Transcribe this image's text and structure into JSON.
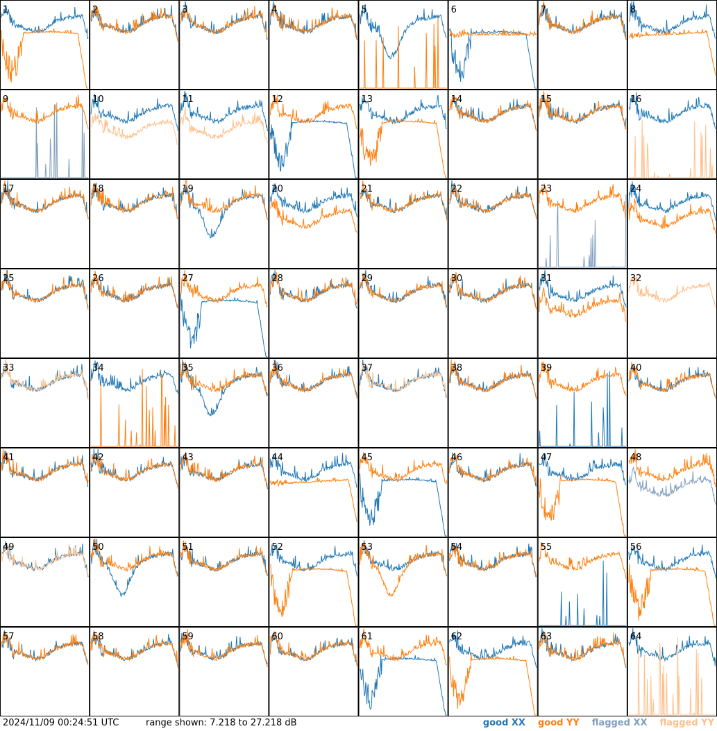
{
  "chart_data": {
    "type": "line",
    "title": "",
    "layout": "8x8 grid of small-multiple spectra, one per antenna",
    "panel_labels": [
      "1",
      "2",
      "3",
      "4",
      "5",
      "6",
      "7",
      "8",
      "9",
      "10",
      "11",
      "12",
      "13",
      "14",
      "15",
      "16",
      "17",
      "18",
      "19",
      "20",
      "21",
      "22",
      "23",
      "24",
      "25",
      "26",
      "27",
      "28",
      "29",
      "30",
      "31",
      "32",
      "33",
      "34",
      "35",
      "36",
      "37",
      "38",
      "39",
      "40",
      "41",
      "42",
      "43",
      "44",
      "45",
      "46",
      "47",
      "48",
      "49",
      "50",
      "51",
      "52",
      "53",
      "54",
      "55",
      "56",
      "57",
      "58",
      "59",
      "60",
      "61",
      "62",
      "63",
      "64"
    ],
    "y_range_db": [
      7.218,
      27.218
    ],
    "ylabel": "",
    "xlabel": "",
    "series_styles": [
      {
        "name": "good XX",
        "color": "#1f77b4"
      },
      {
        "name": "good YY",
        "color": "#ff7f0e"
      },
      {
        "name": "flagged XX",
        "color": "#7f9fbf"
      },
      {
        "name": "flagged YY",
        "color": "#ffbf8a"
      }
    ],
    "panels": [
      {
        "antenna": 1,
        "xx": "normal",
        "yy": "drop",
        "yy_flag": false,
        "xx_flag": false
      },
      {
        "antenna": 2,
        "xx": "normal",
        "yy": "normal"
      },
      {
        "antenna": 3,
        "xx": "normal",
        "yy": "normal"
      },
      {
        "antenna": 4,
        "xx": "normal",
        "yy": "normal"
      },
      {
        "antenna": 5,
        "xx": "dip",
        "yy": "dead"
      },
      {
        "antenna": 6,
        "xx": "drop",
        "yy": "flat"
      },
      {
        "antenna": 7,
        "xx": "normal",
        "yy": "normal"
      },
      {
        "antenna": 8,
        "xx": "normal",
        "yy": "tilt"
      },
      {
        "antenna": 9,
        "xx": "dead",
        "yy": "normal",
        "xx_flag": true
      },
      {
        "antenna": 10,
        "xx": "normal",
        "yy": "low",
        "yy_flag": true
      },
      {
        "antenna": 11,
        "xx": "normal",
        "yy": "low",
        "yy_flag": true
      },
      {
        "antenna": 12,
        "xx": "drop",
        "yy": "normal"
      },
      {
        "antenna": 13,
        "xx": "normal",
        "yy": "drop"
      },
      {
        "antenna": 14,
        "xx": "normal",
        "yy": "normal"
      },
      {
        "antenna": 15,
        "xx": "normal",
        "yy": "normal"
      },
      {
        "antenna": 16,
        "xx": "normal",
        "yy": "dead",
        "yy_flag": true
      },
      {
        "antenna": 17,
        "xx": "normal",
        "yy": "normal"
      },
      {
        "antenna": 18,
        "xx": "normal",
        "yy": "normal"
      },
      {
        "antenna": 19,
        "xx": "dip",
        "yy": "normal"
      },
      {
        "antenna": 20,
        "xx": "normal",
        "yy": "low"
      },
      {
        "antenna": 21,
        "xx": "normal",
        "yy": "normal"
      },
      {
        "antenna": 22,
        "xx": "normal",
        "yy": "normal"
      },
      {
        "antenna": 23,
        "xx": "dead",
        "yy": "normal",
        "xx_flag": true
      },
      {
        "antenna": 24,
        "xx": "normal",
        "yy": "low"
      },
      {
        "antenna": 25,
        "xx": "normal",
        "yy": "normal"
      },
      {
        "antenna": 26,
        "xx": "normal",
        "yy": "normal"
      },
      {
        "antenna": 27,
        "xx": "drop",
        "yy": "normal"
      },
      {
        "antenna": 28,
        "xx": "normal",
        "yy": "normal"
      },
      {
        "antenna": 29,
        "xx": "normal",
        "yy": "normal"
      },
      {
        "antenna": 30,
        "xx": "normal",
        "yy": "normal"
      },
      {
        "antenna": 31,
        "xx": "normal",
        "yy": "low"
      },
      {
        "antenna": 32,
        "xx": "none",
        "yy": "normal",
        "yy_flag": true
      },
      {
        "antenna": 33,
        "xx": "normal",
        "yy": "normal",
        "yy_flag": true
      },
      {
        "antenna": 34,
        "xx": "normal",
        "yy": "dead"
      },
      {
        "antenna": 35,
        "xx": "dip",
        "yy": "normal"
      },
      {
        "antenna": 36,
        "xx": "normal",
        "yy": "normal"
      },
      {
        "antenna": 37,
        "xx": "normal",
        "yy": "normal",
        "yy_flag": true
      },
      {
        "antenna": 38,
        "xx": "normal",
        "yy": "normal"
      },
      {
        "antenna": 39,
        "xx": "dead",
        "yy": "normal"
      },
      {
        "antenna": 40,
        "xx": "normal",
        "yy": "normal"
      },
      {
        "antenna": 41,
        "xx": "normal",
        "yy": "normal"
      },
      {
        "antenna": 42,
        "xx": "normal",
        "yy": "normal"
      },
      {
        "antenna": 43,
        "xx": "normal",
        "yy": "normal"
      },
      {
        "antenna": 44,
        "xx": "normal",
        "yy": "tilt"
      },
      {
        "antenna": 45,
        "xx": "drop",
        "yy": "normal"
      },
      {
        "antenna": 46,
        "xx": "normal",
        "yy": "normal"
      },
      {
        "antenna": 47,
        "xx": "normal",
        "yy": "drop"
      },
      {
        "antenna": 48,
        "xx": "low",
        "yy": "normal",
        "xx_flag": true
      },
      {
        "antenna": 49,
        "xx": "normal",
        "yy": "normal",
        "yy_flag": true
      },
      {
        "antenna": 50,
        "xx": "dip",
        "yy": "normal"
      },
      {
        "antenna": 51,
        "xx": "normal",
        "yy": "normal"
      },
      {
        "antenna": 52,
        "xx": "normal",
        "yy": "drop"
      },
      {
        "antenna": 53,
        "xx": "normal",
        "yy": "dip"
      },
      {
        "antenna": 54,
        "xx": "normal",
        "yy": "normal"
      },
      {
        "antenna": 55,
        "xx": "dead",
        "yy": "normal"
      },
      {
        "antenna": 56,
        "xx": "normal",
        "yy": "drop"
      },
      {
        "antenna": 57,
        "xx": "normal",
        "yy": "normal"
      },
      {
        "antenna": 58,
        "xx": "normal",
        "yy": "normal"
      },
      {
        "antenna": 59,
        "xx": "normal",
        "yy": "normal"
      },
      {
        "antenna": 60,
        "xx": "normal",
        "yy": "normal"
      },
      {
        "antenna": 61,
        "xx": "drop",
        "yy": "normal"
      },
      {
        "antenna": 62,
        "xx": "normal",
        "yy": "drop"
      },
      {
        "antenna": 63,
        "xx": "normal",
        "yy": "normal"
      },
      {
        "antenna": 64,
        "xx": "normal",
        "yy": "dead",
        "yy_flag": true
      }
    ]
  },
  "footer": {
    "timestamp": "2024/11/09 00:24:51 UTC",
    "range_text": "range shown: 7.218 to 27.218 dB"
  },
  "legend": [
    {
      "label": "good XX",
      "color": "#1f77b4"
    },
    {
      "label": "good YY",
      "color": "#ff7f0e"
    },
    {
      "label": "flagged XX",
      "color": "#7f9fbf"
    },
    {
      "label": "flagged YY",
      "color": "#ffbf8a"
    }
  ]
}
